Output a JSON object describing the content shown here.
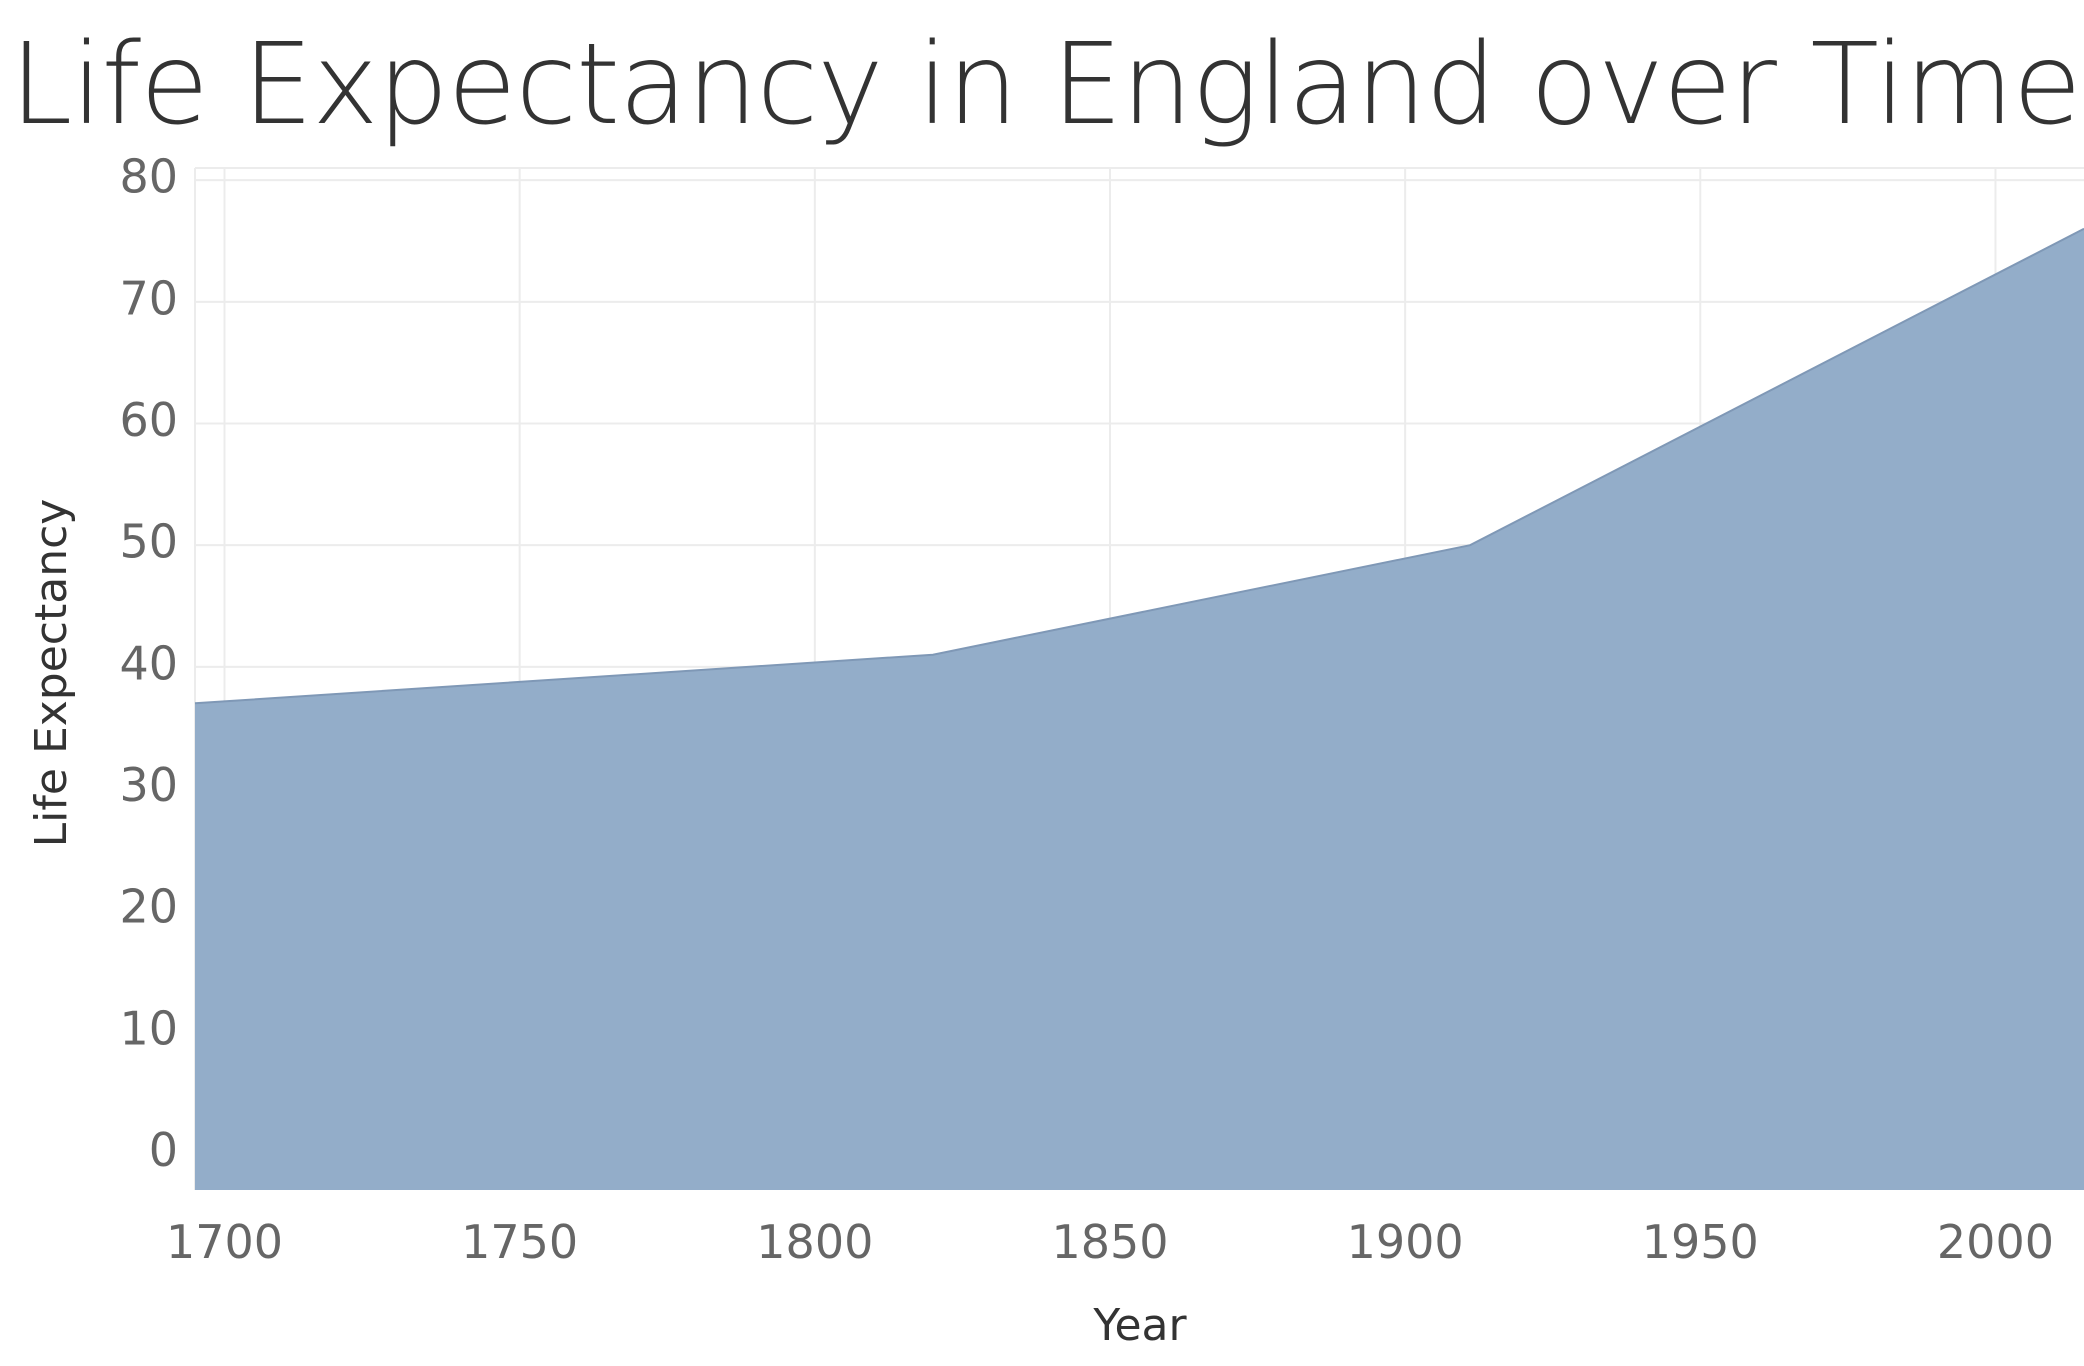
{
  "chart_data": {
    "type": "area",
    "title": "Life Expectancy in England over Time",
    "xlabel": "Year",
    "ylabel": "Life Expectancy",
    "x": [
      1695,
      1820,
      1911,
      2015
    ],
    "series": [
      {
        "values": [
          37,
          41,
          50,
          76
        ]
      }
    ],
    "xlim": [
      1695,
      2015
    ],
    "ylim": [
      -3,
      81
    ],
    "xticks": [
      "1700",
      "1750",
      "1800",
      "1850",
      "1900",
      "1950",
      "2000"
    ],
    "yticks": [
      "0",
      "10",
      "20",
      "30",
      "40",
      "50",
      "60",
      "70",
      "80"
    ],
    "grid": true,
    "colors": {
      "fill": "#93adc9",
      "stroke": "#7f98b6",
      "grid": "#ececec",
      "tick_text": "#666666",
      "axis_text": "#333333"
    }
  }
}
